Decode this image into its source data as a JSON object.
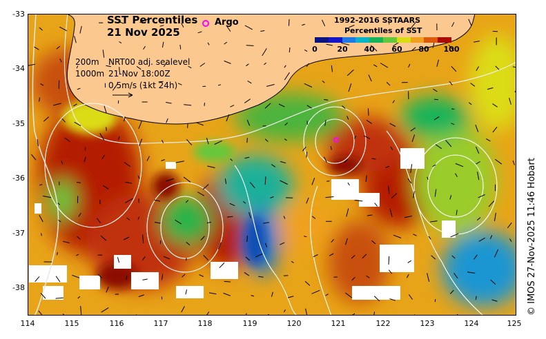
{
  "map": {
    "title": "SST Percentiles",
    "date": "21 Nov 2025",
    "argo_label": "Argo",
    "legend_title": "1992-2016 SSTAARS",
    "legend_subtitle": "Percentiles of SST",
    "colorbar_ticks": [
      "0",
      "20",
      "40",
      "60",
      "80",
      "100"
    ],
    "colorbar_colors": [
      "#0a1480",
      "#1414c8",
      "#1e78e6",
      "#0ab4c8",
      "#14b45a",
      "#64c83c",
      "#dcdc14",
      "#f0a01e",
      "#dc5a0a",
      "#aa0a00"
    ],
    "land_color": "#fbc98f",
    "contour_depth_1": "200m",
    "contour_depth_2": "1000m",
    "sealevel_text": "NRT00 adj. sealevel",
    "valid_time": "21-Nov 18:00Z",
    "vector_scale": "0.5m/s (1kt 24h)",
    "credit": "© IMOS 27-Nov-2025 11:46 Hobart",
    "lat_labels": [
      "-33",
      "-34",
      "-35",
      "-36",
      "-37",
      "-38"
    ],
    "lon_labels": [
      "114",
      "115",
      "116",
      "117",
      "118",
      "119",
      "120",
      "121",
      "122",
      "123",
      "124",
      "125"
    ]
  }
}
